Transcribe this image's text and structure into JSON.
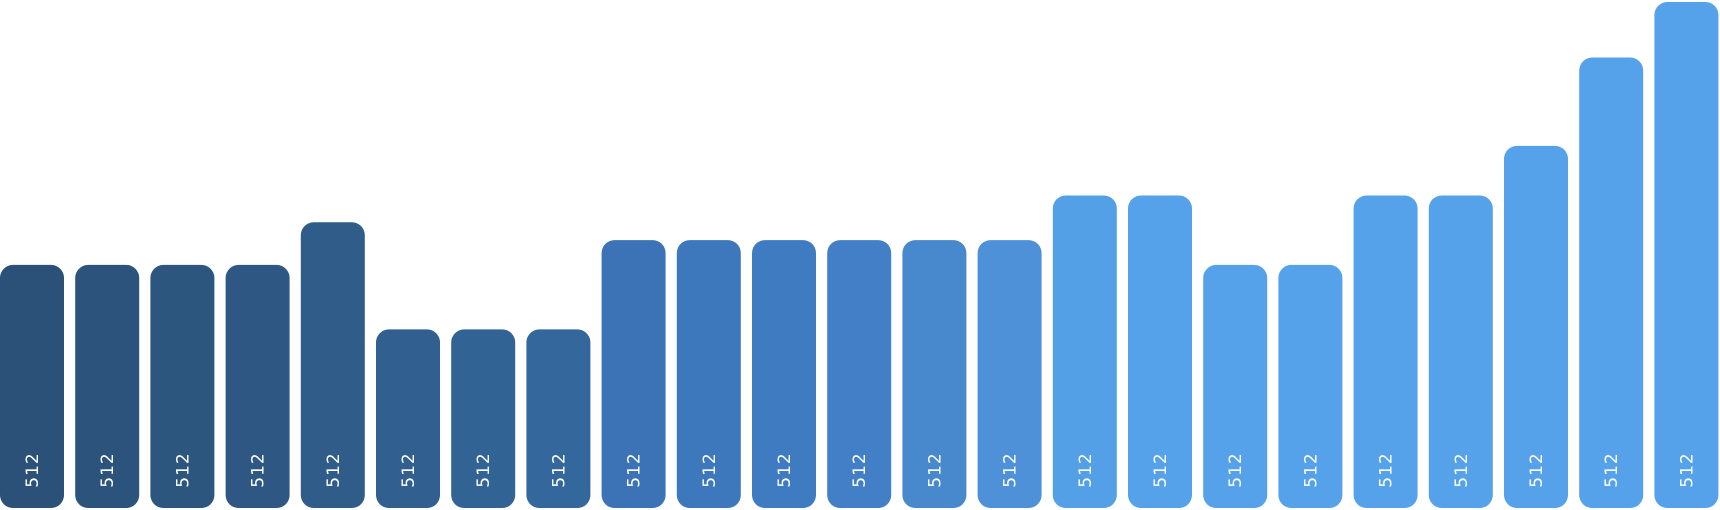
{
  "chart_data": {
    "type": "bar",
    "title": "",
    "xlabel": "",
    "ylabel": "",
    "ylim": [
      0,
      512
    ],
    "grid": false,
    "legend": "none",
    "values": [
      245,
      245,
      245,
      245,
      288,
      180,
      180,
      180,
      270,
      270,
      270,
      270,
      270,
      270,
      315,
      315,
      245,
      245,
      315,
      315,
      365,
      454,
      510
    ],
    "data_labels": [
      "512",
      "512",
      "512",
      "512",
      "512",
      "512",
      "512",
      "512",
      "512",
      "512",
      "512",
      "512",
      "512",
      "512",
      "512",
      "512",
      "512",
      "512",
      "512",
      "512",
      "512",
      "512",
      "512"
    ],
    "colors": [
      "#2b5179",
      "#2c537c",
      "#2d567f",
      "#2e5883",
      "#2f5c89",
      "#315f8f",
      "#326395",
      "#34679b",
      "#3b73b6",
      "#3d77bc",
      "#3f7bc1",
      "#437fc6",
      "#4888cd",
      "#4e91d9",
      "#54a0e7",
      "#56a2ea",
      "#56a2ea",
      "#56a2ea",
      "#56a2ea",
      "#56a2ea",
      "#56a2ea",
      "#56a2ea",
      "#56a2ea"
    ]
  }
}
